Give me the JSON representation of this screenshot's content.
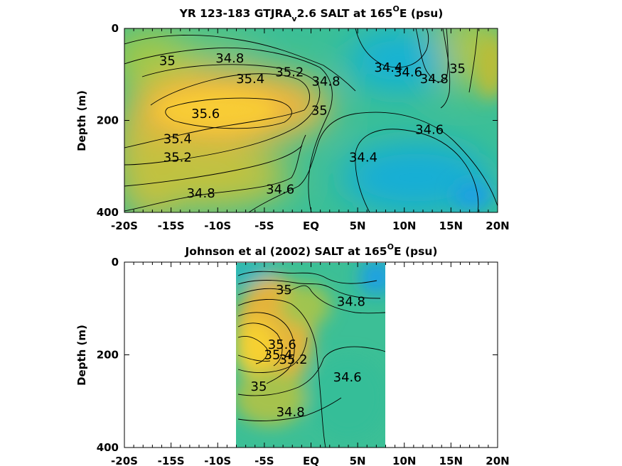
{
  "chart_data": [
    {
      "type": "contour",
      "title": {
        "main": "YR 123-183 GTJRA",
        "sub": "v",
        "after_sub": "2.6 SALT at 165",
        "sup": "O",
        "tail": "E (psu)"
      },
      "ylabel": "Depth (m)",
      "xlim": [
        -20,
        20
      ],
      "ylim": [
        0,
        400
      ],
      "x_ticks": [
        -20,
        -15,
        -10,
        -5,
        0,
        5,
        10,
        15,
        20
      ],
      "x_tick_labels": [
        "-20S",
        "-15S",
        "-10S",
        "-5S",
        "EQ",
        "5N",
        "10N",
        "15N",
        "20N"
      ],
      "y_ticks": [
        0,
        200,
        400
      ],
      "y_tick_labels": [
        "0",
        "200",
        "400"
      ],
      "levels": [
        34.4,
        34.6,
        34.8,
        35,
        35.2,
        35.4,
        35.6
      ],
      "contour_labels": [
        {
          "text": "35",
          "x": -15.4,
          "y": 70
        },
        {
          "text": "34.8",
          "x": -8.7,
          "y": 65
        },
        {
          "text": "35.4",
          "x": -6.5,
          "y": 110
        },
        {
          "text": "35.2",
          "x": -2.3,
          "y": 95
        },
        {
          "text": "34.8",
          "x": 1.6,
          "y": 115
        },
        {
          "text": "35",
          "x": 0.9,
          "y": 178
        },
        {
          "text": "35.6",
          "x": -11.3,
          "y": 185
        },
        {
          "text": "35.4",
          "x": -14.3,
          "y": 240
        },
        {
          "text": "35.2",
          "x": -14.3,
          "y": 280
        },
        {
          "text": "34.8",
          "x": -11.8,
          "y": 358
        },
        {
          "text": "34.6",
          "x": -3.3,
          "y": 350
        },
        {
          "text": "34.4",
          "x": 8.3,
          "y": 85
        },
        {
          "text": "34.6",
          "x": 10.4,
          "y": 95
        },
        {
          "text": "34.8",
          "x": 13.2,
          "y": 110
        },
        {
          "text": "35",
          "x": 15.7,
          "y": 87
        },
        {
          "text": "34.6",
          "x": 12.7,
          "y": 220
        },
        {
          "text": "34.4",
          "x": 5.6,
          "y": 280
        }
      ]
    },
    {
      "type": "contour",
      "title": {
        "main": "Johnson et al (2002) SALT at 165",
        "sup": "O",
        "tail": "E (psu)"
      },
      "ylabel": "Depth (m)",
      "xlim": [
        -20,
        20
      ],
      "ylim": [
        0,
        400
      ],
      "data_x_range": [
        -8,
        8
      ],
      "x_ticks": [
        -20,
        -15,
        -10,
        -5,
        0,
        5,
        10,
        15,
        20
      ],
      "x_tick_labels": [
        "-20S",
        "-15S",
        "-10S",
        "-5S",
        "EQ",
        "5N",
        "10N",
        "15N",
        "20N"
      ],
      "y_ticks": [
        0,
        200,
        400
      ],
      "y_tick_labels": [
        "0",
        "200",
        "400"
      ],
      "levels": [
        34.4,
        34.6,
        34.8,
        35,
        35.2,
        35.4,
        35.6
      ],
      "contour_labels": [
        {
          "text": "35",
          "x": -2.9,
          "y": 60
        },
        {
          "text": "34.8",
          "x": 4.3,
          "y": 85
        },
        {
          "text": "35.6",
          "x": -3.1,
          "y": 178
        },
        {
          "text": "35.4",
          "x": -3.5,
          "y": 200
        },
        {
          "text": "35.2",
          "x": -1.9,
          "y": 210
        },
        {
          "text": "34.6",
          "x": 3.9,
          "y": 248
        },
        {
          "text": "35",
          "x": -5.6,
          "y": 268
        },
        {
          "text": "34.8",
          "x": -2.2,
          "y": 323
        }
      ]
    }
  ]
}
